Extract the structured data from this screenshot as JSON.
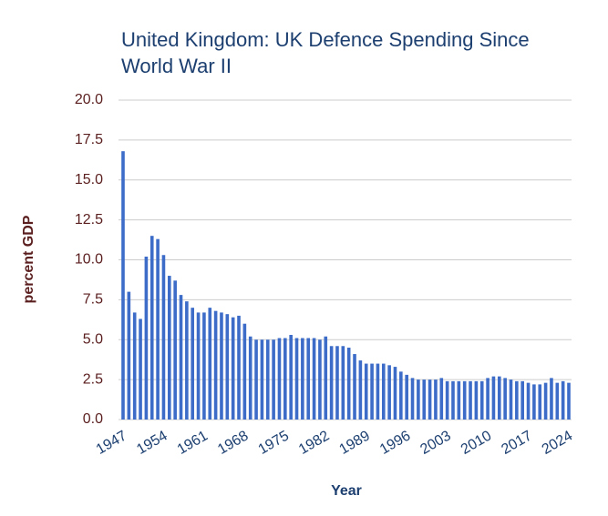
{
  "chart_data": {
    "type": "bar",
    "title": [
      "United Kingdom: UK Defence Spending Since",
      "World War II"
    ],
    "x_label": "Year",
    "y_label": "percent GDP",
    "categories": [
      "1947",
      null,
      null,
      null,
      null,
      null,
      null,
      "1954",
      null,
      null,
      null,
      null,
      null,
      null,
      "1961",
      null,
      null,
      null,
      null,
      null,
      null,
      "1968",
      null,
      null,
      null,
      null,
      null,
      null,
      "1975",
      null,
      null,
      null,
      null,
      null,
      null,
      "1982",
      null,
      null,
      null,
      null,
      null,
      null,
      "1989",
      null,
      null,
      null,
      null,
      null,
      null,
      "1996",
      null,
      null,
      null,
      null,
      null,
      null,
      "2003",
      null,
      null,
      null,
      null,
      null,
      null,
      "2010",
      null,
      null,
      null,
      null,
      null,
      null,
      "2017",
      null,
      null,
      null,
      null,
      null,
      null,
      "2024"
    ],
    "values": [
      16.8,
      8.0,
      6.7,
      6.3,
      10.2,
      11.5,
      11.3,
      10.3,
      9.0,
      8.7,
      7.8,
      7.4,
      7.0,
      6.7,
      6.7,
      7.0,
      6.8,
      6.7,
      6.6,
      6.4,
      6.5,
      6.0,
      5.2,
      5.0,
      5.0,
      5.0,
      5.0,
      5.1,
      5.1,
      5.3,
      5.1,
      5.1,
      5.1,
      5.1,
      5.0,
      5.2,
      4.6,
      4.6,
      4.6,
      4.5,
      4.1,
      3.7,
      3.5,
      3.5,
      3.5,
      3.5,
      3.4,
      3.3,
      3.0,
      2.8,
      2.6,
      2.5,
      2.5,
      2.5,
      2.5,
      2.6,
      2.4,
      2.4,
      2.4,
      2.4,
      2.4,
      2.4,
      2.4,
      2.6,
      2.7,
      2.7,
      2.6,
      2.5,
      2.4,
      2.4,
      2.3,
      2.2,
      2.2,
      2.3,
      2.6,
      2.3,
      2.4,
      2.3
    ],
    "color": "#3c6cc8",
    "ylim": [
      0,
      20
    ],
    "yticks": [
      {
        "value": 0,
        "label": "0.0"
      },
      2.5,
      {
        "value": 5,
        "label": "5.0"
      },
      7.5,
      {
        "value": 10,
        "label": "10.0"
      },
      12.5,
      {
        "value": 15,
        "label": "15.0"
      },
      17.5,
      {
        "value": 20,
        "label": "20.0"
      }
    ],
    "grid": true
  }
}
